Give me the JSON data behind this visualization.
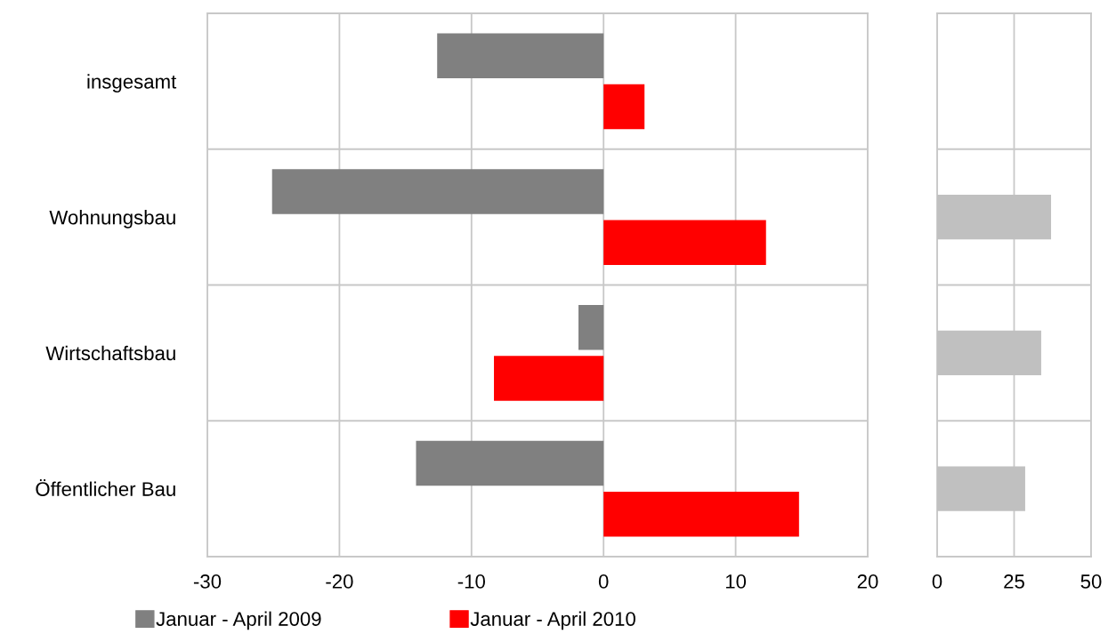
{
  "chart_data": [
    {
      "type": "bar",
      "orientation": "horizontal",
      "categories": [
        "insgesamt",
        "Wohnungsbau",
        "Wirtschaftsbau",
        "Öffentlicher Bau"
      ],
      "series": [
        {
          "name": "Januar - April 2009",
          "color": "#808080",
          "values": [
            -12.6,
            -25.1,
            -1.9,
            -14.2
          ]
        },
        {
          "name": "Januar - April 2010",
          "color": "#ff0000",
          "values": [
            3.1,
            12.3,
            -8.3,
            14.8
          ]
        }
      ],
      "xlim": [
        -30,
        20
      ],
      "xticks": [
        -30,
        -20,
        -10,
        0,
        10,
        20
      ],
      "grid": true,
      "legend": "bottom"
    },
    {
      "type": "bar",
      "orientation": "horizontal",
      "categories": [
        null,
        null,
        null,
        null
      ],
      "series": [
        {
          "color": "#c0c0c0",
          "values": [
            null,
            37,
            33.8,
            28.6
          ]
        }
      ],
      "xlim": [
        0,
        50
      ],
      "xticks": [
        0,
        25,
        50
      ],
      "grid": true,
      "tick_labels": "x"
    }
  ]
}
